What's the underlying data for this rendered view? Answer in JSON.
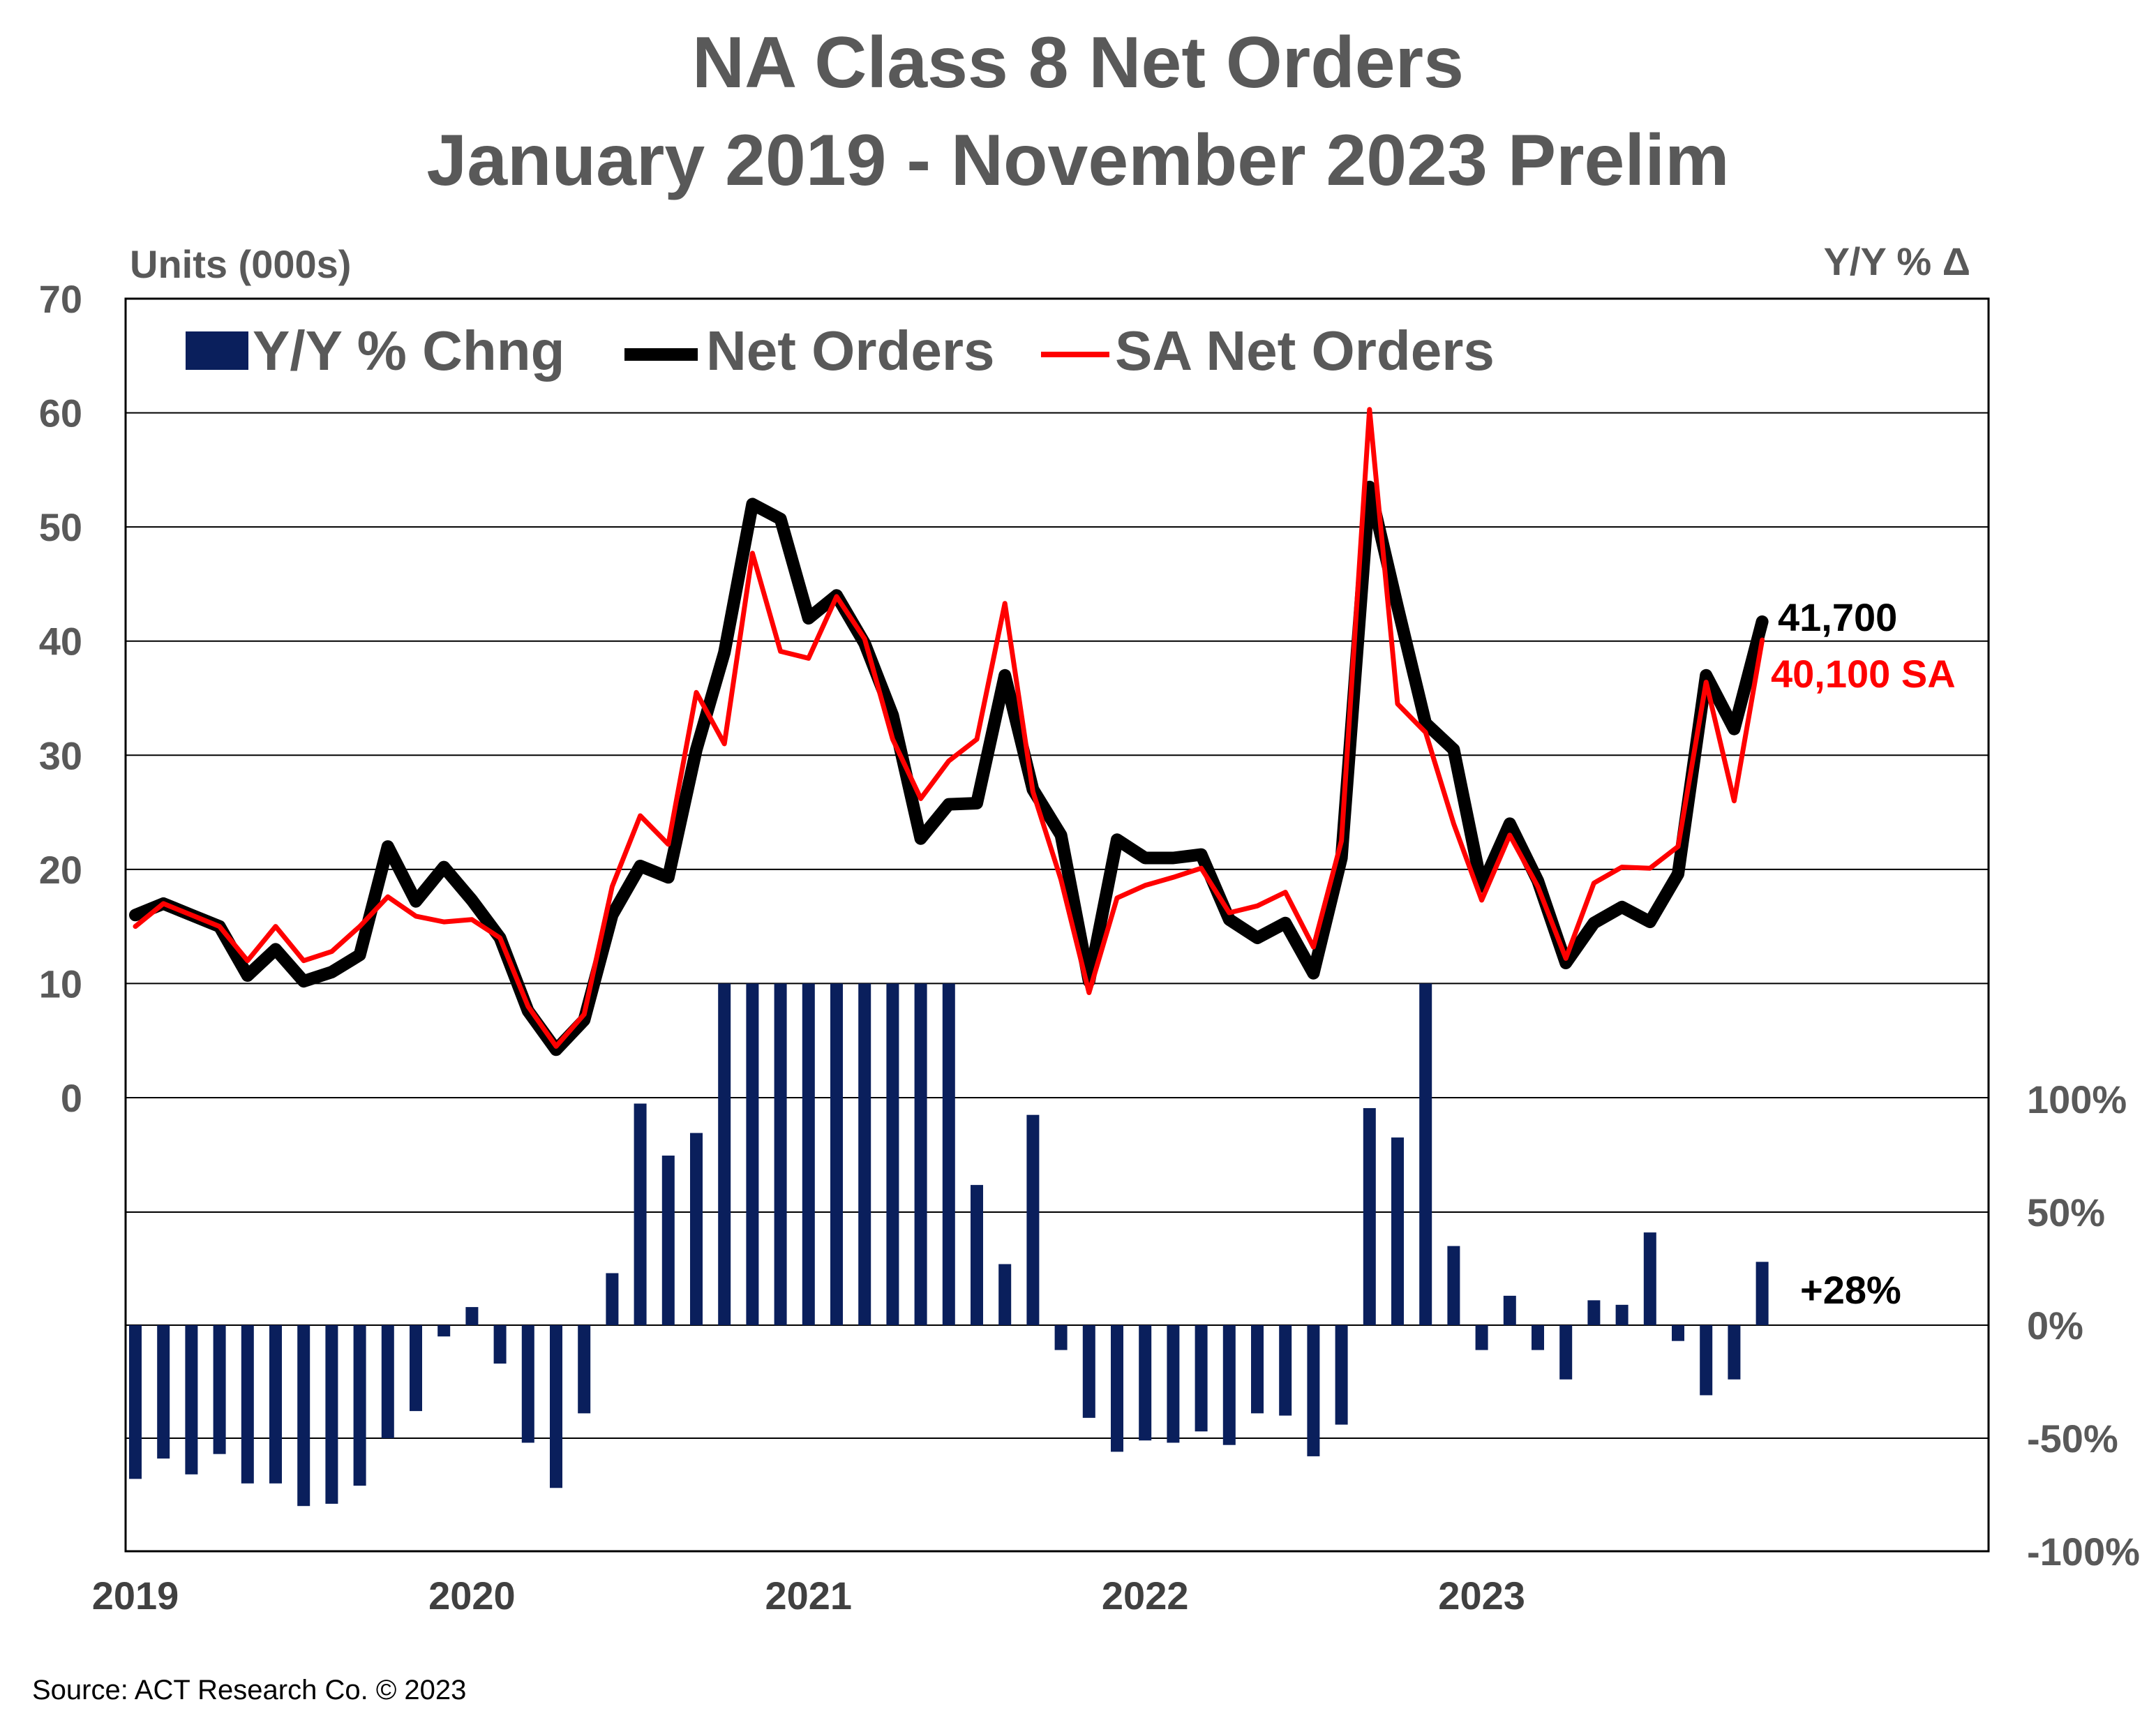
{
  "title_lines": [
    "NA Class 8 Net Orders",
    "January 2019 - November 2023 Prelim"
  ],
  "source": "Source: ACT Research Co. © 2023",
  "colors": {
    "bars": "#0a1f5c",
    "net_orders": "#000000",
    "sa_net_orders": "#ff0000",
    "text": "#595959"
  },
  "chart_data": {
    "type": "bar+line",
    "title": "NA Class 8 Net Orders January 2019 - November 2023 Prelim",
    "x_tick_labels": [
      "2019",
      "2020",
      "2021",
      "2022",
      "2023"
    ],
    "left_axis": {
      "label": "Units (000s)",
      "tick_labels": [
        "70",
        "60",
        "50",
        "40",
        "30",
        "20",
        "10",
        "0"
      ],
      "range": [
        0,
        70
      ]
    },
    "right_axis": {
      "label": "Y/Y % Δ",
      "tick_labels": [
        "100%",
        "50%",
        "0%",
        "-50%",
        "-100%"
      ],
      "range": [
        -100,
        200
      ]
    },
    "grid": true,
    "legend_position": "top",
    "months": [
      "Jan 2019",
      "Feb 2019",
      "Mar 2019",
      "Apr 2019",
      "May 2019",
      "Jun 2019",
      "Jul 2019",
      "Aug 2019",
      "Sep 2019",
      "Oct 2019",
      "Nov 2019",
      "Dec 2019",
      "Jan 2020",
      "Feb 2020",
      "Mar 2020",
      "Apr 2020",
      "May 2020",
      "Jun 2020",
      "Jul 2020",
      "Aug 2020",
      "Sep 2020",
      "Oct 2020",
      "Nov 2020",
      "Dec 2020",
      "Jan 2021",
      "Feb 2021",
      "Mar 2021",
      "Apr 2021",
      "May 2021",
      "Jun 2021",
      "Jul 2021",
      "Aug 2021",
      "Sep 2021",
      "Oct 2021",
      "Nov 2021",
      "Dec 2021",
      "Jan 2022",
      "Feb 2022",
      "Mar 2022",
      "Apr 2022",
      "May 2022",
      "Jun 2022",
      "Jul 2022",
      "Aug 2022",
      "Sep 2022",
      "Oct 2022",
      "Nov 2022",
      "Dec 2022",
      "Jan 2023",
      "Feb 2023",
      "Mar 2023",
      "Apr 2023",
      "May 2023",
      "Jun 2023",
      "Jul 2023",
      "Aug 2023",
      "Sep 2023",
      "Oct 2023",
      "Nov 2023"
    ],
    "series": [
      {
        "name": "Y/Y % Chng",
        "type": "bar",
        "axis": "right",
        "values": [
          -68,
          -59,
          -66,
          -57,
          -70,
          -70,
          -80,
          -79,
          -71,
          -50,
          -38,
          -5,
          8,
          -17,
          -52,
          -72,
          -39,
          23,
          98,
          75,
          85,
          165,
          185,
          200,
          190,
          200,
          180,
          200,
          200,
          200,
          62,
          27,
          93,
          -11,
          -41,
          -56,
          -51,
          -52,
          -47,
          -53,
          -39,
          -40,
          -58,
          -44,
          96,
          83,
          190,
          35,
          -11,
          13,
          -11,
          -24,
          11,
          9,
          41,
          -7,
          -31,
          -24,
          28
        ]
      },
      {
        "name": "Net Orders",
        "type": "line",
        "axis": "left",
        "values": [
          16,
          17,
          16,
          15,
          10.7,
          13,
          10.2,
          11,
          12.5,
          22,
          17.2,
          20.2,
          17.3,
          14,
          7.6,
          4.2,
          6.8,
          16,
          20.3,
          19.3,
          30.5,
          39,
          52,
          50.7,
          42,
          44,
          39.8,
          33.5,
          22.7,
          25.7,
          25.8,
          37,
          27,
          23,
          10.2,
          22.6,
          21,
          21,
          21.3,
          15.6,
          14,
          15.3,
          10.9,
          21,
          53.5,
          43,
          32.8,
          30.5,
          18.5,
          24,
          19,
          11.8,
          15.3,
          16.7,
          15.4,
          19.6,
          37,
          32.3,
          41.7
        ]
      },
      {
        "name": "SA Net Orders",
        "type": "line",
        "axis": "left",
        "values": [
          15,
          17,
          16,
          15,
          12,
          15,
          12,
          12.8,
          15,
          17.6,
          15.9,
          15.4,
          15.6,
          14,
          8,
          4.5,
          7.3,
          18.5,
          24.7,
          22.2,
          35.5,
          31,
          47.7,
          39.1,
          38.5,
          43.9,
          40.2,
          31.4,
          26.2,
          29.5,
          31.4,
          43.3,
          26.8,
          19.1,
          9.2,
          17.5,
          18.6,
          19.3,
          20.1,
          16.2,
          16.8,
          18,
          13.2,
          22.5,
          60.3,
          34.5,
          32,
          24,
          17.3,
          23,
          18.5,
          12.2,
          18.8,
          20.2,
          20.1,
          22,
          36.4,
          26,
          40.1
        ]
      }
    ],
    "annotations": [
      {
        "text": "41,700",
        "color": "#000000"
      },
      {
        "text": "40,100 SA",
        "color": "#ff0000"
      },
      {
        "text": "+28%",
        "color": "#000000"
      }
    ]
  }
}
